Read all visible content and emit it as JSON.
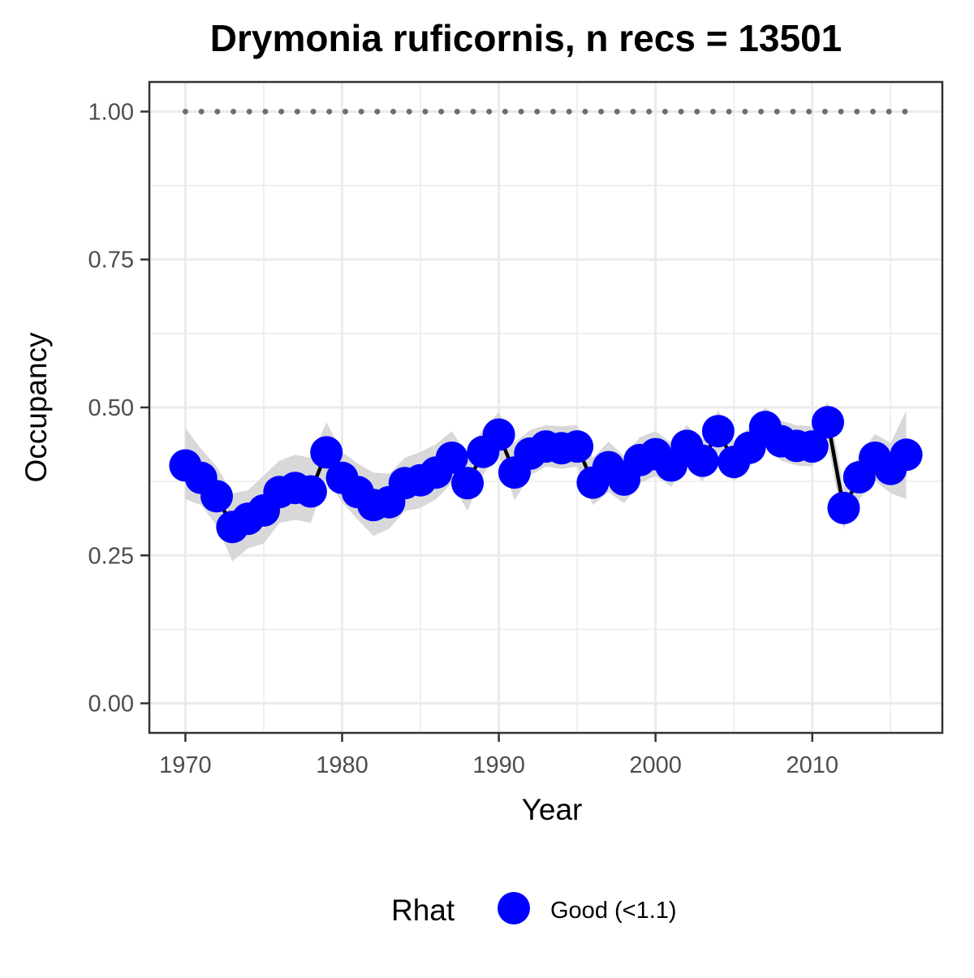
{
  "chart_data": {
    "type": "line",
    "title": "Drymonia ruficornis, n recs = 13501",
    "xlabel": "Year",
    "ylabel": "Occupancy",
    "xlim": [
      1967.7,
      2018.3
    ],
    "ylim": [
      -0.05,
      1.05
    ],
    "x_ticks": [
      1970,
      1980,
      1990,
      2000,
      2010
    ],
    "x_tick_labels": [
      "1970",
      "1980",
      "1990",
      "2000",
      "2010"
    ],
    "y_ticks": [
      0,
      0.25,
      0.5,
      0.75,
      1
    ],
    "y_tick_labels": [
      "0.00",
      "0.25",
      "0.50",
      "0.75",
      "1.00"
    ],
    "grid": true,
    "legend": {
      "title": "Rhat",
      "position": "bottom",
      "entries": [
        {
          "label": "Good (<1.1)",
          "color": "#0000ff"
        }
      ]
    },
    "colors": {
      "points": "#0000ff",
      "line": "#000000",
      "ribbon": "#d6d6d9",
      "reference": "#6e6e6e",
      "grid": "#ebebeb",
      "border": "#333333"
    },
    "reference_line": {
      "y": 1.0,
      "x_start": 1970,
      "x_end": 2016
    },
    "series": [
      {
        "x": [
          1970,
          1971,
          1972,
          1973,
          1974,
          1975,
          1976,
          1977,
          1978,
          1979,
          1980,
          1981,
          1982,
          1983,
          1984,
          1985,
          1986,
          1987,
          1988,
          1989,
          1990,
          1991,
          1992,
          1993,
          1994,
          1995,
          1996,
          1997,
          1998,
          1999,
          2000,
          2001,
          2002,
          2003,
          2004,
          2005,
          2006,
          2007,
          2008,
          2009,
          2010,
          2011,
          2012,
          2013,
          2014,
          2015,
          2016
        ],
        "y": [
          0.402,
          0.381,
          0.35,
          0.298,
          0.312,
          0.326,
          0.357,
          0.364,
          0.358,
          0.424,
          0.381,
          0.357,
          0.335,
          0.34,
          0.372,
          0.377,
          0.39,
          0.415,
          0.372,
          0.425,
          0.454,
          0.39,
          0.422,
          0.434,
          0.431,
          0.434,
          0.373,
          0.399,
          0.378,
          0.411,
          0.421,
          0.402,
          0.435,
          0.41,
          0.46,
          0.408,
          0.432,
          0.467,
          0.443,
          0.435,
          0.434,
          0.475,
          0.33,
          0.382,
          0.415,
          0.396,
          0.42
        ],
        "lower": [
          0.345,
          0.335,
          0.3,
          0.24,
          0.262,
          0.27,
          0.305,
          0.31,
          0.305,
          0.38,
          0.34,
          0.31,
          0.283,
          0.295,
          0.325,
          0.33,
          0.345,
          0.372,
          0.325,
          0.387,
          0.42,
          0.343,
          0.385,
          0.4,
          0.396,
          0.4,
          0.335,
          0.357,
          0.338,
          0.372,
          0.384,
          0.366,
          0.402,
          0.375,
          0.425,
          0.375,
          0.4,
          0.435,
          0.41,
          0.402,
          0.4,
          0.44,
          0.295,
          0.345,
          0.376,
          0.355,
          0.345
        ],
        "upper": [
          0.465,
          0.43,
          0.4,
          0.355,
          0.36,
          0.385,
          0.41,
          0.42,
          0.415,
          0.475,
          0.425,
          0.405,
          0.39,
          0.388,
          0.415,
          0.425,
          0.438,
          0.46,
          0.42,
          0.465,
          0.492,
          0.44,
          0.462,
          0.47,
          0.468,
          0.47,
          0.415,
          0.442,
          0.418,
          0.45,
          0.46,
          0.44,
          0.47,
          0.445,
          0.495,
          0.443,
          0.466,
          0.5,
          0.478,
          0.47,
          0.468,
          0.51,
          0.365,
          0.42,
          0.455,
          0.44,
          0.495
        ]
      }
    ]
  }
}
